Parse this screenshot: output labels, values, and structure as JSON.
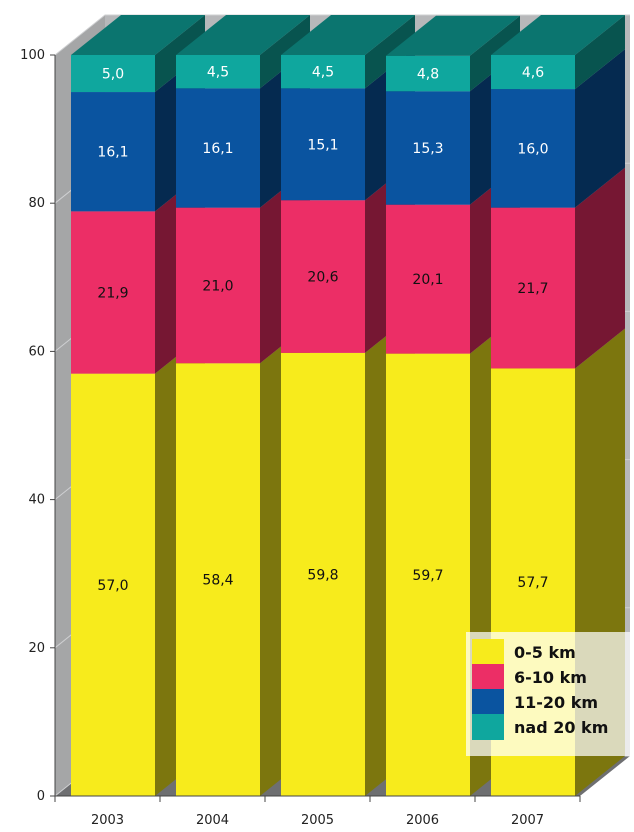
{
  "chart_data": {
    "type": "bar",
    "stacked": true,
    "three_d": true,
    "title": "",
    "xlabel": "",
    "ylabel": "",
    "ylim": [
      0,
      100
    ],
    "yticks": [
      0,
      20,
      40,
      60,
      80,
      100
    ],
    "categories": [
      "2003",
      "2004",
      "2005",
      "2006",
      "2007"
    ],
    "series": [
      {
        "name": "0-5 km",
        "color": "#f7eb1c",
        "values": [
          57.0,
          58.4,
          59.8,
          59.7,
          57.7
        ],
        "labels": [
          "57,0",
          "58,4",
          "59,8",
          "59,7",
          "57,7"
        ],
        "label_color": "#111111"
      },
      {
        "name": "6-10 km",
        "color": "#ec2e66",
        "values": [
          21.9,
          21.0,
          20.6,
          20.1,
          21.7
        ],
        "labels": [
          "21,9",
          "21,0",
          "20,6",
          "20,1",
          "21,7"
        ],
        "label_color": "#111111"
      },
      {
        "name": "11-20 km",
        "color": "#0a54a0",
        "values": [
          16.1,
          16.1,
          15.1,
          15.3,
          16.0
        ],
        "labels": [
          "16,1",
          "16,1",
          "15,1",
          "15,3",
          "16,0"
        ],
        "label_color": "#ffffff"
      },
      {
        "name": "nad 20 km",
        "color": "#0fa79e",
        "values": [
          5.0,
          4.5,
          4.5,
          4.8,
          4.6
        ],
        "labels": [
          "5,0",
          "4,5",
          "4,5",
          "4,8",
          "4,6"
        ],
        "label_color": "#ffffff"
      }
    ],
    "legend_position": "bottom-right",
    "grid": true,
    "wall_color": "#b7b8ba",
    "floor_color": "#6e6f71"
  }
}
